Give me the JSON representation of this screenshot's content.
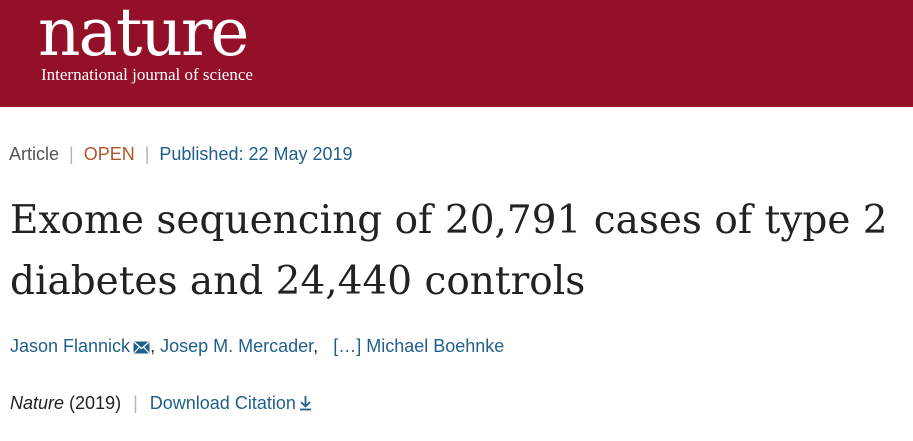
{
  "header": {
    "logo": "nature",
    "tagline": "International journal of science",
    "background_color": "#941029"
  },
  "article_meta": {
    "type": "Article",
    "access": "OPEN",
    "published": "Published: 22 May 2019"
  },
  "article": {
    "title": "Exome sequencing of 20,791 cases of type 2 diabetes and 24,440 controls"
  },
  "authors": {
    "first": "Jason Flannick",
    "first_icon": "mail-icon",
    "second": "Josep M. Mercader",
    "separator": ",",
    "ellipsis": "[…]",
    "last": "Michael Boehnke"
  },
  "citation": {
    "journal": "Nature",
    "year": "(2019)",
    "download_label": "Download Citation",
    "download_icon": "download-icon"
  }
}
